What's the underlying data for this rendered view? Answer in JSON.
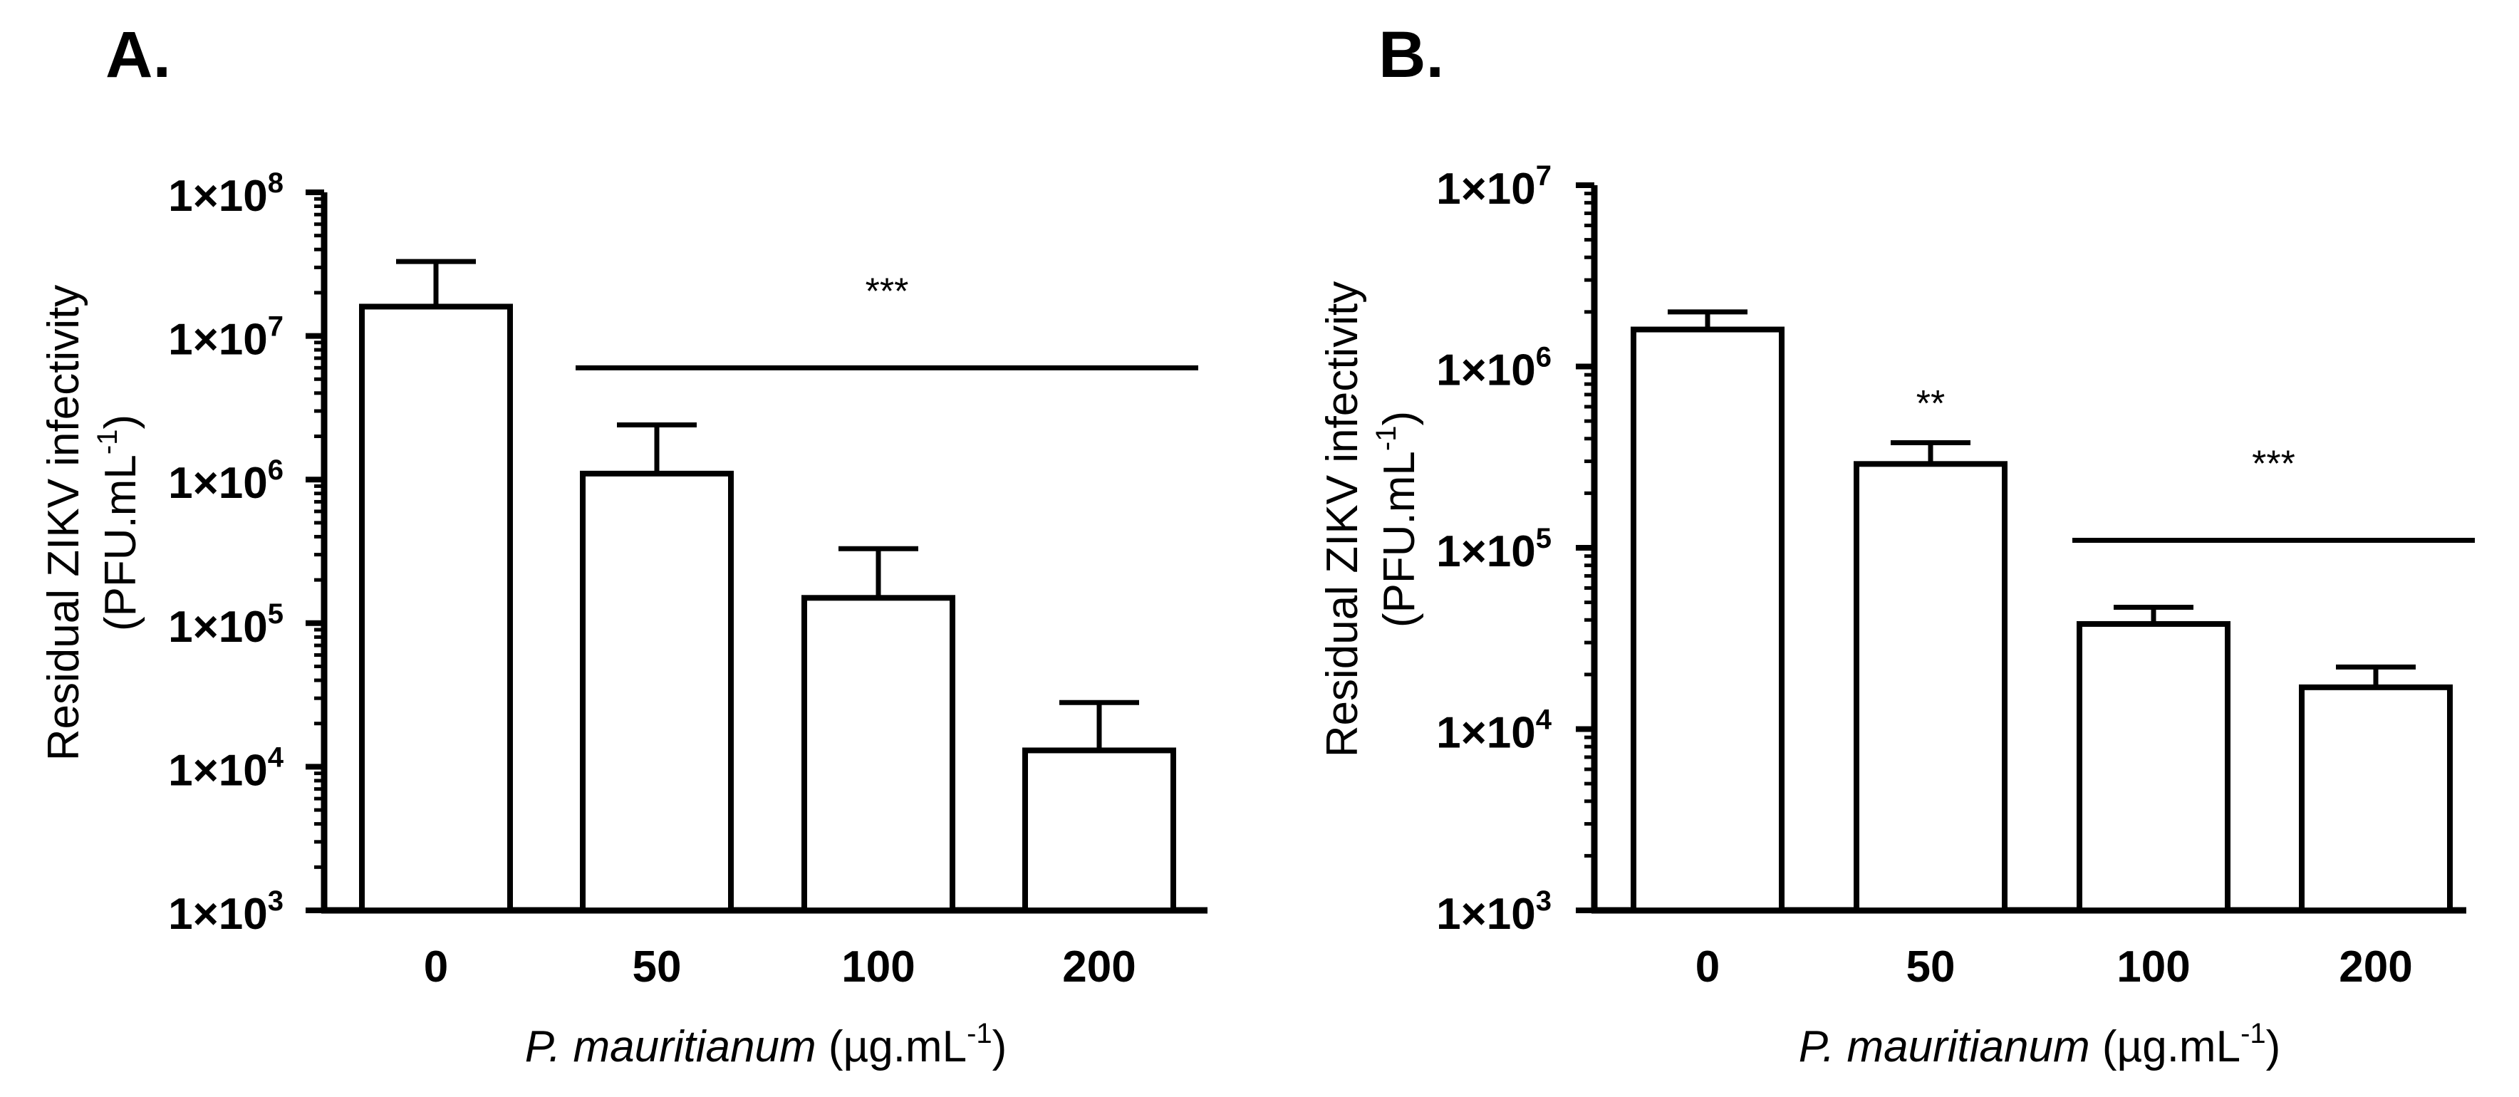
{
  "chart_data": [
    {
      "panel": "A.",
      "type": "bar",
      "scale": "log10",
      "categories": [
        "0",
        "50",
        "100",
        "200"
      ],
      "values": [
        16000000,
        1100000,
        150000,
        13000
      ],
      "error_upper": [
        33000000,
        2400000,
        330000,
        28000
      ],
      "ylim": [
        1000,
        100000000
      ],
      "yticks": [
        {
          "base": "1×10",
          "exp": "3"
        },
        {
          "base": "1×10",
          "exp": "4"
        },
        {
          "base": "1×10",
          "exp": "5"
        },
        {
          "base": "1×10",
          "exp": "6"
        },
        {
          "base": "1×10",
          "exp": "7"
        },
        {
          "base": "1×10",
          "exp": "8"
        }
      ],
      "ylabel_line1": "Residual ZIKV infectivity",
      "ylabel_line2_pre": "(PFU.mL",
      "ylabel_line2_sup": "-1",
      "ylabel_line2_post": ")",
      "xlabel_italic": "P. mauritianum",
      "xlabel_pre": " (µg.mL",
      "xlabel_sup": "-1",
      "xlabel_post": ")",
      "significance": [
        {
          "text": "***",
          "from": 1,
          "to": 3,
          "y": 6000000
        }
      ]
    },
    {
      "panel": "B.",
      "type": "bar",
      "scale": "log10",
      "categories": [
        "0",
        "50",
        "100",
        "200"
      ],
      "values": [
        1600000,
        290000,
        38000,
        17000
      ],
      "error_upper": [
        2000000,
        380000,
        47000,
        22000
      ],
      "ylim": [
        1000,
        10000000
      ],
      "yticks": [
        {
          "base": "1×10",
          "exp": "3"
        },
        {
          "base": "1×10",
          "exp": "4"
        },
        {
          "base": "1×10",
          "exp": "5"
        },
        {
          "base": "1×10",
          "exp": "6"
        },
        {
          "base": "1×10",
          "exp": "7"
        }
      ],
      "ylabel_line1": "Residual ZIKV infectivity",
      "ylabel_line2_pre": "(PFU.mL",
      "ylabel_line2_sup": "-1",
      "ylabel_line2_post": ")",
      "xlabel_italic": "P. mauritianum",
      "xlabel_pre": " (µg.mL",
      "xlabel_sup": "-1",
      "xlabel_post": ")",
      "significance": [
        {
          "text": "**",
          "from": 1,
          "to": 1,
          "y": 700000,
          "no_line": true
        },
        {
          "text": "***",
          "from": 2,
          "to": 3,
          "y": 110000
        }
      ]
    }
  ]
}
